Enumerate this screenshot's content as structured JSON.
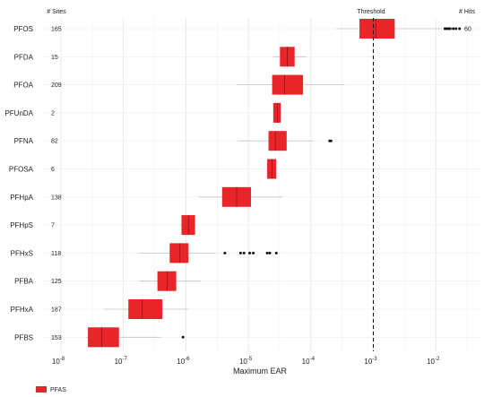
{
  "chart_data": {
    "type": "boxplot",
    "title": "",
    "xlabel": "Maximum EAR",
    "x_scale": "log10",
    "xlim": [
      1e-08,
      0.05
    ],
    "x_ticks": [
      1e-08,
      1e-07,
      1e-06,
      1e-05,
      0.0001,
      0.001,
      0.01
    ],
    "x_tick_exponents": [
      "-8",
      "-7",
      "-6",
      "-5",
      "-4",
      "-3",
      "-2"
    ],
    "x_tick_base": "10",
    "threshold": {
      "value": 0.001,
      "label": "Threshold"
    },
    "column_headers": {
      "sites": "# Sites",
      "hits": "# Hits"
    },
    "legend": {
      "position": "bottom-left",
      "entries": [
        {
          "name": "PFAS",
          "color": "#e8262a"
        }
      ]
    },
    "grid": true,
    "box_color": "#e8262a",
    "rows": [
      {
        "category": "PFOS",
        "sites": "165",
        "hits": "60",
        "whisker_low": 0.00025,
        "q1": 0.0006,
        "median": 0.0011,
        "q3": 0.0022,
        "whisker_high": 0.012,
        "outliers": [
          0.014,
          0.015,
          0.016,
          0.017,
          0.019,
          0.021,
          0.024
        ]
      },
      {
        "category": "PFDA",
        "sites": "15",
        "hits": "",
        "whisker_low": 2.5e-05,
        "q1": 3.2e-05,
        "median": 4.2e-05,
        "q3": 5.5e-05,
        "whisker_high": 8.5e-05,
        "outliers": []
      },
      {
        "category": "PFOA",
        "sites": "209",
        "hits": "",
        "whisker_low": 6.5e-06,
        "q1": 2.4e-05,
        "median": 3.8e-05,
        "q3": 7.5e-05,
        "whisker_high": 0.00035,
        "outliers": []
      },
      {
        "category": "PFUnDA",
        "sites": "2",
        "hits": "",
        "whisker_low": 2.5e-05,
        "q1": 2.5e-05,
        "median": 2.9e-05,
        "q3": 3.3e-05,
        "whisker_high": 3.3e-05,
        "outliers": []
      },
      {
        "category": "PFNA",
        "sites": "82",
        "hits": "",
        "whisker_low": 6.8e-06,
        "q1": 2.1e-05,
        "median": 2.7e-05,
        "q3": 4.1e-05,
        "whisker_high": 0.00011,
        "outliers": [
          0.0002,
          0.00021
        ]
      },
      {
        "category": "PFOSA",
        "sites": "6",
        "hits": "",
        "whisker_low": 2e-05,
        "q1": 2e-05,
        "median": 2.4e-05,
        "q3": 2.8e-05,
        "whisker_high": 2.8e-05,
        "outliers": []
      },
      {
        "category": "PFHpA",
        "sites": "138",
        "hits": "",
        "whisker_low": 1.6e-06,
        "q1": 3.8e-06,
        "median": 6.5e-06,
        "q3": 1.1e-05,
        "whisker_high": 3.5e-05,
        "outliers": []
      },
      {
        "category": "PFHpS",
        "sites": "7",
        "hits": "",
        "whisker_low": 8e-07,
        "q1": 8.5e-07,
        "median": 1.1e-06,
        "q3": 1.4e-06,
        "whisker_high": 1.4e-06,
        "outliers": []
      },
      {
        "category": "PFHxS",
        "sites": "118",
        "hits": "",
        "whisker_low": 1.8e-07,
        "q1": 5.5e-07,
        "median": 8e-07,
        "q3": 1.1e-06,
        "whisker_high": 3e-06,
        "outliers": [
          4.2e-06,
          7.5e-06,
          8.5e-06,
          1.05e-05,
          1.2e-05,
          2e-05,
          2.2e-05,
          2.8e-05
        ]
      },
      {
        "category": "PFBA",
        "sites": "125",
        "hits": "",
        "whisker_low": 1.8e-07,
        "q1": 3.5e-07,
        "median": 5e-07,
        "q3": 7e-07,
        "whisker_high": 1.7e-06,
        "outliers": []
      },
      {
        "category": "PFHxA",
        "sites": "187",
        "hits": "",
        "whisker_low": 5e-08,
        "q1": 1.2e-07,
        "median": 2e-07,
        "q3": 4.2e-07,
        "whisker_high": 1.1e-06,
        "outliers": []
      },
      {
        "category": "PFBS",
        "sites": "153",
        "hits": "",
        "whisker_low": 2.5e-08,
        "q1": 2.7e-08,
        "median": 4.5e-08,
        "q3": 8.5e-08,
        "whisker_high": 4e-07,
        "outliers": [
          9e-07
        ]
      }
    ]
  }
}
